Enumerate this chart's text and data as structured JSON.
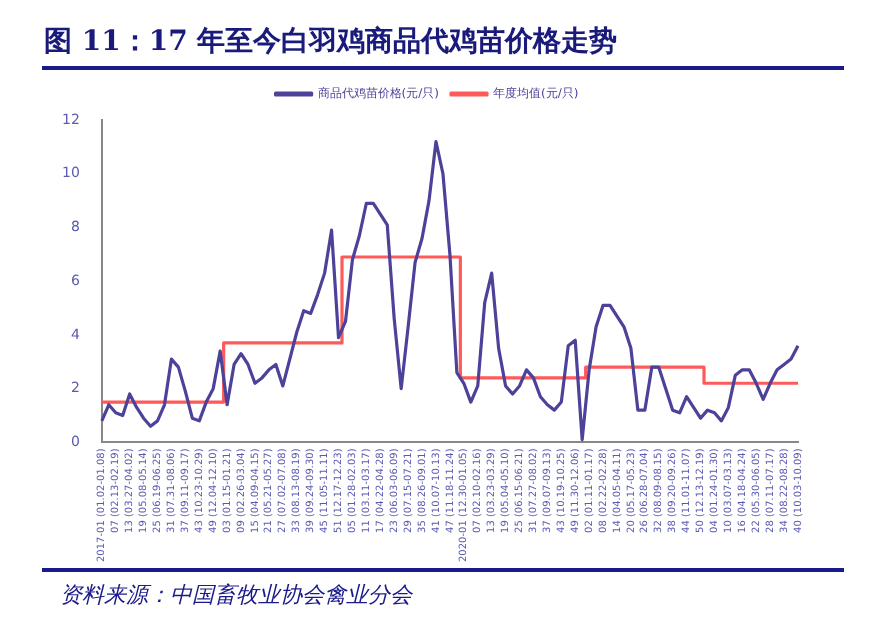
{
  "chart_data": {
    "type": "line",
    "title": "图 11：17 年至今白羽鸡商品代鸡苗价格走势",
    "categories": [
      "2017-01 (01.02-01.08)",
      null,
      "07 (02.13-02.19)",
      null,
      "13 (03.27-04.02)",
      null,
      "19 (05.08-05.14)",
      null,
      "25 (06.19-06.25)",
      null,
      "31 (07.31-08.06)",
      null,
      "37 (09.11-09.17)",
      null,
      "43 (10.23-10.29)",
      null,
      "49 (12.04-12.10)",
      null,
      "03 (01.15-01.21)",
      null,
      "09 (02.26-03.04)",
      null,
      "15 (04.09-04.15)",
      null,
      "21 (05.21-05.27)",
      null,
      "27 (07.02-07.08)",
      null,
      "33 (08.13-08.19)",
      null,
      "39 (09.24-09.30)",
      null,
      "45 (11.05-11.11)",
      null,
      "51 (12.17-12.23)",
      null,
      "05 (01.28-02.03)",
      null,
      "11 (03.11-03.17)",
      null,
      "17 (04.22-04.28)",
      null,
      "23 (06.03-06.09)",
      null,
      "29 (07.15-07.21)",
      null,
      "35 (08.26-09.01)",
      null,
      "41 (10.07-10.13)",
      null,
      "47 (11.18-11.24)",
      null,
      "2020-01 (12.30-01.05)",
      null,
      "07 (02.10-02.16)",
      null,
      "13 (03.23-03.29)",
      null,
      "19 (05.04-05.10)",
      null,
      "25 (06.15-06.21)",
      null,
      "31 (07.27-08.02)",
      null,
      "37 (09.07-09.13)",
      null,
      "43 (10.19-10.25)",
      null,
      "49 (11.30-12.06)",
      null,
      "02 (01.11-01.17)",
      null,
      "08 (02.22-02.28)",
      null,
      "14 (04.05-04.11)",
      null,
      "20 (05.17-05.23)",
      null,
      "26 (06.28-07.04)",
      null,
      "32 (08.09-08.15)",
      null,
      "38 (09.20-09.26)",
      null,
      "44 (11.01-11.07)",
      null,
      "50 (12.13-12.19)",
      null,
      "04 (01.24-01.30)",
      null,
      "10 (03.07-03.13)",
      null,
      "16 (04.18-04.24)",
      null,
      "22 (05.30-06.05)",
      null,
      "28 (07.11-07.17)",
      null,
      "34 (08.22-08.28)",
      null,
      "40 (10.03-10.09)"
    ],
    "series": [
      {
        "name": "商品代鸡苗价格(元/只)",
        "type": "line",
        "color": "#4c4299",
        "values": [
          0.8,
          1.4,
          1.1,
          1.0,
          1.8,
          1.3,
          0.9,
          0.6,
          0.8,
          1.4,
          3.1,
          2.8,
          1.9,
          0.9,
          0.8,
          1.5,
          2.0,
          3.4,
          1.4,
          2.9,
          3.3,
          2.9,
          2.2,
          2.4,
          2.7,
          2.9,
          2.1,
          3.1,
          4.1,
          4.9,
          4.8,
          5.5,
          6.3,
          7.9,
          3.9,
          4.5,
          6.8,
          7.7,
          8.9,
          8.9,
          8.5,
          8.1,
          4.6,
          2.0,
          4.3,
          6.7,
          7.6,
          9.0,
          11.2,
          10.0,
          7.0,
          2.6,
          2.2,
          1.5,
          2.1,
          5.2,
          6.3,
          3.5,
          2.1,
          1.8,
          2.1,
          2.7,
          2.4,
          1.7,
          1.4,
          1.2,
          1.5,
          3.6,
          3.8,
          0.1,
          2.7,
          4.3,
          5.1,
          5.1,
          4.7,
          4.3,
          3.5,
          1.2,
          1.2,
          2.8,
          2.8,
          2.0,
          1.2,
          1.1,
          1.7,
          1.3,
          0.9,
          1.2,
          1.1,
          0.8,
          1.3,
          2.5,
          2.7,
          2.7,
          2.2,
          1.6,
          2.2,
          2.7,
          2.9,
          3.1,
          3.6
        ]
      },
      {
        "name": "年度均值(元/只)",
        "type": "step",
        "color": "#ff5a5a",
        "values": [
          1.5,
          1.5,
          1.5,
          1.5,
          1.5,
          1.5,
          1.5,
          1.5,
          1.5,
          1.5,
          1.5,
          1.5,
          1.5,
          1.5,
          1.5,
          1.5,
          1.5,
          1.5,
          3.7,
          3.7,
          3.7,
          3.7,
          3.7,
          3.7,
          3.7,
          3.7,
          3.7,
          3.7,
          3.7,
          3.7,
          3.7,
          3.7,
          3.7,
          3.7,
          3.7,
          6.9,
          6.9,
          6.9,
          6.9,
          6.9,
          6.9,
          6.9,
          6.9,
          6.9,
          6.9,
          6.9,
          6.9,
          6.9,
          6.9,
          6.9,
          6.9,
          6.9,
          2.4,
          2.4,
          2.4,
          2.4,
          2.4,
          2.4,
          2.4,
          2.4,
          2.4,
          2.4,
          2.4,
          2.4,
          2.4,
          2.4,
          2.4,
          2.4,
          2.4,
          2.4,
          2.8,
          2.8,
          2.8,
          2.8,
          2.8,
          2.8,
          2.8,
          2.8,
          2.8,
          2.8,
          2.8,
          2.8,
          2.8,
          2.8,
          2.8,
          2.8,
          2.8,
          2.2,
          2.2,
          2.2,
          2.2,
          2.2,
          2.2,
          2.2,
          2.2,
          2.2,
          2.2,
          2.2,
          2.2,
          2.2,
          2.2
        ]
      }
    ],
    "ylim": [
      0,
      12
    ],
    "yticks": [
      0,
      2,
      4,
      6,
      8,
      10,
      12
    ],
    "grid": false,
    "legend": "top",
    "marker": "none",
    "line_style": "solid",
    "annotations": [
      "资料来源：中国畜牧业协会禽业分会"
    ]
  }
}
